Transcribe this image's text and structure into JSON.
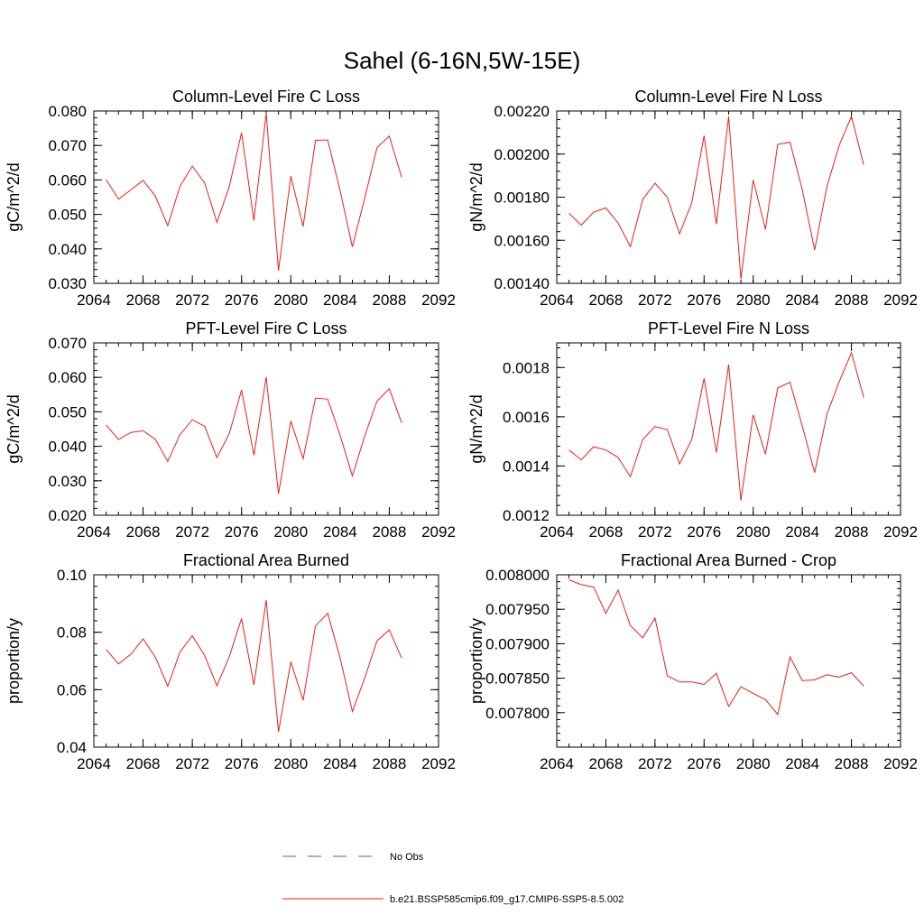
{
  "figure": {
    "title": "Sahel (6-16N,5W-15E)"
  },
  "legend": {
    "items": [
      {
        "label": "No Obs",
        "color": "#5a5ab4",
        "dash": true
      },
      {
        "label": "b.e21.BSSP585cmip6.f09_g17.CMIP6-SSP5-8.5.002",
        "color": "#e8201c",
        "dash": false
      }
    ]
  },
  "chart_data": [
    {
      "type": "line",
      "title": "Column-Level Fire C Loss",
      "ylabel": "gC/m^2/d",
      "xlim": [
        2064,
        2092
      ],
      "ylim": [
        0.03,
        0.08
      ],
      "xticks": [
        2064,
        2068,
        2072,
        2076,
        2080,
        2084,
        2088,
        2092
      ],
      "xtick_labels": [
        "2064",
        "2068",
        "2072",
        "2076",
        "2080",
        "2084",
        "2088",
        "2092"
      ],
      "yticks": [
        0.03,
        0.04,
        0.05,
        0.06,
        0.07,
        0.08
      ],
      "ytick_labels": [
        "0.030",
        "0.040",
        "0.050",
        "0.060",
        "0.070",
        "0.080"
      ],
      "series": [
        {
          "color": "#e8201c",
          "x": [
            2065,
            2066,
            2067,
            2068,
            2069,
            2070,
            2071,
            2072,
            2073,
            2074,
            2075,
            2076,
            2077,
            2078,
            2079,
            2080,
            2081,
            2082,
            2083,
            2084,
            2085,
            2086,
            2087,
            2088,
            2089
          ],
          "y": [
            0.0601,
            0.0544,
            0.0571,
            0.0599,
            0.0553,
            0.0467,
            0.0582,
            0.064,
            0.0591,
            0.0477,
            0.0581,
            0.0737,
            0.0482,
            0.0794,
            0.0337,
            0.0611,
            0.0465,
            0.0715,
            0.0716,
            0.0569,
            0.0406,
            0.0546,
            0.0694,
            0.0727,
            0.0608
          ]
        }
      ]
    },
    {
      "type": "line",
      "title": "Column-Level Fire N Loss",
      "ylabel": "gN/m^2/d",
      "xlim": [
        2064,
        2092
      ],
      "ylim": [
        0.0014,
        0.0022
      ],
      "xticks": [
        2064,
        2068,
        2072,
        2076,
        2080,
        2084,
        2088,
        2092
      ],
      "xtick_labels": [
        "2064",
        "2068",
        "2072",
        "2076",
        "2080",
        "2084",
        "2088",
        "2092"
      ],
      "yticks": [
        0.0014,
        0.0016,
        0.0018,
        0.002,
        0.0022
      ],
      "ytick_labels": [
        "0.00140",
        "0.00160",
        "0.00180",
        "0.00200",
        "0.00220"
      ],
      "series": [
        {
          "color": "#e8201c",
          "x": [
            2065,
            2066,
            2067,
            2068,
            2069,
            2070,
            2071,
            2072,
            2073,
            2074,
            2075,
            2076,
            2077,
            2078,
            2079,
            2080,
            2081,
            2082,
            2083,
            2084,
            2085,
            2086,
            2087,
            2088,
            2089
          ],
          "y": [
            0.001725,
            0.00167,
            0.00173,
            0.00175,
            0.00168,
            0.00157,
            0.00179,
            0.001865,
            0.0018,
            0.00163,
            0.001775,
            0.002085,
            0.001675,
            0.002175,
            0.00142,
            0.00188,
            0.00165,
            0.002045,
            0.002055,
            0.001835,
            0.001555,
            0.00185,
            0.00204,
            0.002175,
            0.00195
          ]
        }
      ]
    },
    {
      "type": "line",
      "title": "PFT-Level Fire C Loss",
      "ylabel": "gC/m^2/d",
      "xlim": [
        2064,
        2092
      ],
      "ylim": [
        0.02,
        0.07
      ],
      "xticks": [
        2064,
        2068,
        2072,
        2076,
        2080,
        2084,
        2088,
        2092
      ],
      "xtick_labels": [
        "2064",
        "2068",
        "2072",
        "2076",
        "2080",
        "2084",
        "2088",
        "2092"
      ],
      "yticks": [
        0.02,
        0.03,
        0.04,
        0.05,
        0.06,
        0.07
      ],
      "ytick_labels": [
        "0.020",
        "0.030",
        "0.040",
        "0.050",
        "0.060",
        "0.070"
      ],
      "series": [
        {
          "color": "#e8201c",
          "x": [
            2065,
            2066,
            2067,
            2068,
            2069,
            2070,
            2071,
            2072,
            2073,
            2074,
            2075,
            2076,
            2077,
            2078,
            2079,
            2080,
            2081,
            2082,
            2083,
            2084,
            2085,
            2086,
            2087,
            2088,
            2089
          ],
          "y": [
            0.0462,
            0.042,
            0.044,
            0.0445,
            0.042,
            0.0356,
            0.0434,
            0.0477,
            0.0458,
            0.0367,
            0.0437,
            0.0563,
            0.0374,
            0.0601,
            0.0262,
            0.0473,
            0.0364,
            0.054,
            0.0537,
            0.0432,
            0.0314,
            0.0429,
            0.0531,
            0.0567,
            0.0468
          ]
        }
      ]
    },
    {
      "type": "line",
      "title": "PFT-Level Fire N Loss",
      "ylabel": "gN/m^2/d",
      "xlim": [
        2064,
        2092
      ],
      "ylim": [
        0.0012,
        0.0019
      ],
      "xticks": [
        2064,
        2068,
        2072,
        2076,
        2080,
        2084,
        2088,
        2092
      ],
      "xtick_labels": [
        "2064",
        "2068",
        "2072",
        "2076",
        "2080",
        "2084",
        "2088",
        "2092"
      ],
      "yticks": [
        0.0012,
        0.0014,
        0.0016,
        0.0018
      ],
      "ytick_labels": [
        "0.0012",
        "0.0014",
        "0.0016",
        "0.0018"
      ],
      "series": [
        {
          "color": "#e8201c",
          "x": [
            2065,
            2066,
            2067,
            2068,
            2069,
            2070,
            2071,
            2072,
            2073,
            2074,
            2075,
            2076,
            2077,
            2078,
            2079,
            2080,
            2081,
            2082,
            2083,
            2084,
            2085,
            2086,
            2087,
            2088,
            2089
          ],
          "y": [
            0.001465,
            0.001425,
            0.001478,
            0.001465,
            0.001435,
            0.001356,
            0.001508,
            0.00156,
            0.001548,
            0.001408,
            0.001508,
            0.001756,
            0.001455,
            0.001812,
            0.00126,
            0.001608,
            0.001448,
            0.001717,
            0.00174,
            0.001563,
            0.001373,
            0.00161,
            0.001742,
            0.00186,
            0.001678
          ]
        }
      ]
    },
    {
      "type": "line",
      "title": "Fractional Area Burned",
      "ylabel": "proportion/y",
      "xlim": [
        2064,
        2092
      ],
      "ylim": [
        0.04,
        0.1
      ],
      "xticks": [
        2064,
        2068,
        2072,
        2076,
        2080,
        2084,
        2088,
        2092
      ],
      "xtick_labels": [
        "2064",
        "2068",
        "2072",
        "2076",
        "2080",
        "2084",
        "2088",
        "2092"
      ],
      "yticks": [
        0.04,
        0.06,
        0.08,
        0.1
      ],
      "ytick_labels": [
        "0.04",
        "0.06",
        "0.08",
        "0.10"
      ],
      "series": [
        {
          "color": "#e8201c",
          "x": [
            2065,
            2066,
            2067,
            2068,
            2069,
            2070,
            2071,
            2072,
            2073,
            2074,
            2075,
            2076,
            2077,
            2078,
            2079,
            2080,
            2081,
            2082,
            2083,
            2084,
            2085,
            2086,
            2087,
            2088,
            2089
          ],
          "y": [
            0.074,
            0.069,
            0.0723,
            0.0777,
            0.0713,
            0.0612,
            0.0731,
            0.0788,
            0.0719,
            0.0614,
            0.0715,
            0.0848,
            0.0617,
            0.0912,
            0.0453,
            0.0697,
            0.0563,
            0.0822,
            0.0866,
            0.0711,
            0.0524,
            0.064,
            0.077,
            0.0808,
            0.071
          ]
        }
      ]
    },
    {
      "type": "line",
      "title": "Fractional Area Burned - Crop",
      "ylabel": "proportion/y",
      "xlim": [
        2064,
        2092
      ],
      "ylim": [
        0.00775,
        0.008
      ],
      "xticks": [
        2064,
        2068,
        2072,
        2076,
        2080,
        2084,
        2088,
        2092
      ],
      "xtick_labels": [
        "2064",
        "2068",
        "2072",
        "2076",
        "2080",
        "2084",
        "2088",
        "2092"
      ],
      "yticks": [
        0.0078,
        0.00785,
        0.0079,
        0.00795,
        0.008
      ],
      "ytick_labels": [
        "0.007800",
        "0.007850",
        "0.007900",
        "0.007950",
        "0.008000"
      ],
      "series": [
        {
          "color": "#e8201c",
          "x": [
            2065,
            2066,
            2067,
            2068,
            2069,
            2070,
            2071,
            2072,
            2073,
            2074,
            2075,
            2076,
            2077,
            2078,
            2079,
            2080,
            2081,
            2082,
            2083,
            2084,
            2085,
            2086,
            2087,
            2088,
            2089
          ],
          "y": [
            0.0079927,
            0.0079857,
            0.0079822,
            0.0079441,
            0.0079777,
            0.0079262,
            0.0079087,
            0.0079372,
            0.0078535,
            0.0078445,
            0.0078445,
            0.007841,
            0.007857,
            0.007809,
            0.0078375,
            0.007828,
            0.007819,
            0.0077975,
            0.007881,
            0.0078465,
            0.0078475,
            0.007855,
            0.0078515,
            0.007858,
            0.0078385
          ]
        }
      ]
    }
  ]
}
